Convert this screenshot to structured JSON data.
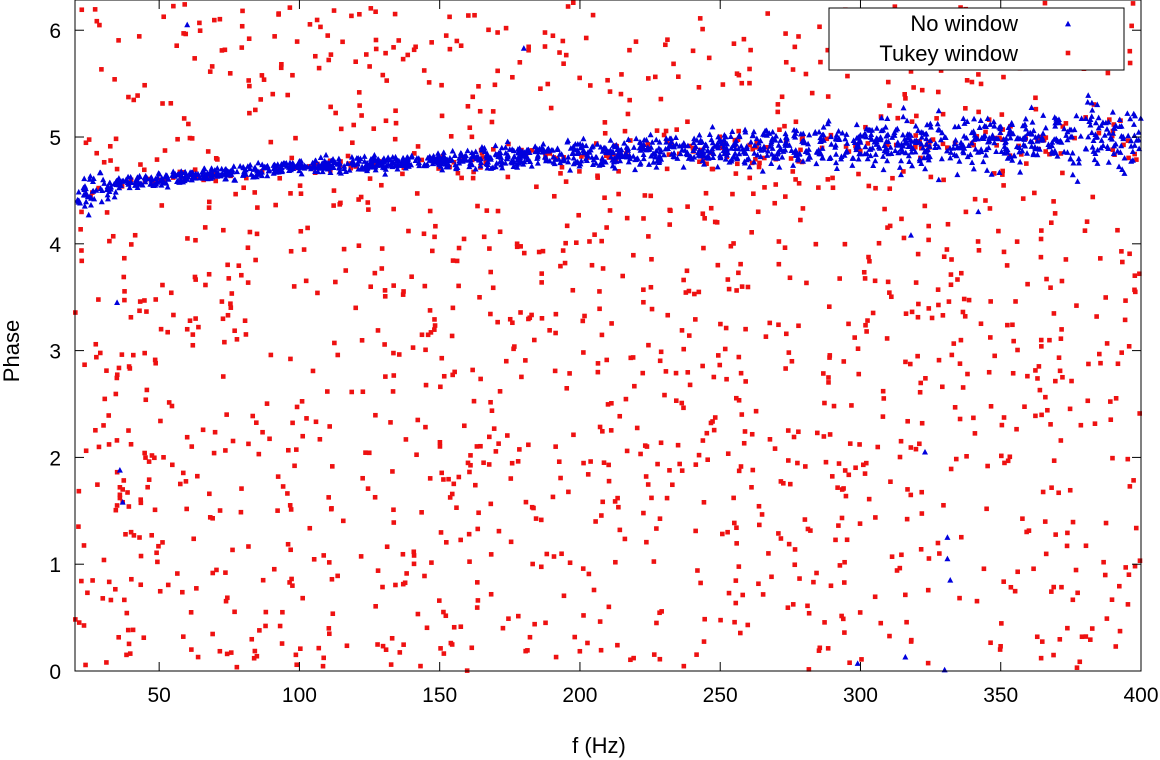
{
  "chart_data": {
    "type": "scatter",
    "title": "",
    "xlabel": "f (Hz)",
    "ylabel": "Phase",
    "xlim": [
      20,
      400
    ],
    "ylim": [
      0,
      6.283
    ],
    "xticks": [
      50,
      100,
      150,
      200,
      250,
      300,
      350,
      400
    ],
    "yticks": [
      0,
      1,
      2,
      3,
      4,
      5,
      6
    ],
    "xtick_labels": [
      "50",
      "100",
      "150",
      "200",
      "250",
      "300",
      "350",
      "400"
    ],
    "ytick_labels": [
      "0",
      "1",
      "2",
      "3",
      "4",
      "5",
      "6"
    ],
    "grid": false,
    "legend_position": "top-right",
    "series": [
      {
        "name": "No window",
        "marker": "triangle",
        "color": "#0000dd",
        "trend": {
          "x": [
            20,
            40,
            60,
            100,
            150,
            200,
            250,
            300,
            350,
            400
          ],
          "y": [
            4.45,
            4.58,
            4.63,
            4.72,
            4.78,
            4.84,
            4.88,
            4.93,
            4.97,
            5.0
          ]
        },
        "spread": {
          "x": [
            20,
            40,
            60,
            100,
            150,
            200,
            250,
            300,
            350,
            400
          ],
          "y": [
            0.2,
            0.06,
            0.06,
            0.06,
            0.08,
            0.12,
            0.16,
            0.22,
            0.27,
            0.32
          ]
        },
        "point_count": 1600,
        "outliers": [
          [
            35,
            3.45
          ],
          [
            36,
            1.88
          ],
          [
            37,
            1.58
          ],
          [
            60,
            6.05
          ],
          [
            180,
            5.83
          ],
          [
            299,
            0.07
          ],
          [
            316,
            0.13
          ],
          [
            323,
            2.05
          ],
          [
            330,
            0.01
          ],
          [
            331,
            1.25
          ],
          [
            331,
            1.05
          ],
          [
            332,
            0.85
          ],
          [
            318,
            4.08
          ],
          [
            342,
            4.3
          ]
        ]
      },
      {
        "name": "Tukey window",
        "marker": "square",
        "color": "#ee1111",
        "background": {
          "x_range": [
            20,
            400
          ],
          "y_range": [
            0,
            6.283
          ],
          "point_count": 1500
        },
        "trend": {
          "x": [
            30,
            60,
            100,
            150,
            200,
            250,
            300,
            350,
            400
          ],
          "y": [
            4.55,
            4.62,
            4.72,
            4.8,
            4.86,
            4.9,
            4.95,
            4.95,
            4.95
          ]
        },
        "spread": {
          "x": [
            30,
            60,
            100,
            150,
            200,
            250,
            300,
            350,
            400
          ],
          "y": [
            0.06,
            0.05,
            0.05,
            0.06,
            0.08,
            0.1,
            0.12,
            0.14,
            0.16
          ]
        },
        "on_trend_count": 120,
        "clusters": [
          {
            "points": [
              [
                36,
                1.72
              ],
              [
                36,
                1.65
              ],
              [
                37,
                1.58
              ],
              [
                37,
                1.7
              ],
              [
                35,
                1.55
              ],
              [
                36,
                1.62
              ],
              [
                38,
                1.28
              ],
              [
                41,
                1.27
              ],
              [
                43,
                1.25
              ],
              [
                40,
                1.3
              ]
            ]
          },
          {
            "points": [
              [
                60,
                3.2
              ],
              [
                61,
                3.28
              ],
              [
                62,
                3.15
              ],
              [
                63,
                3.3
              ],
              [
                64,
                3.22
              ],
              [
                62,
                3.05
              ]
            ]
          },
          {
            "points": [
              [
                35,
                4.7
              ],
              [
                36,
                4.55
              ],
              [
                40,
                4.6
              ],
              [
                45,
                4.58
              ],
              [
                50,
                4.6
              ],
              [
                55,
                4.62
              ],
              [
                42,
                4.57
              ]
            ]
          }
        ]
      }
    ]
  }
}
